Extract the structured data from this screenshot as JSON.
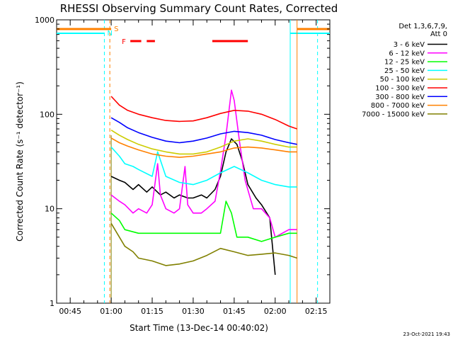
{
  "chart_data": {
    "type": "line",
    "title": "RHESSI Observing Summary Count Rates, Corrected",
    "xlabel": "Start Time (13-Dec-14 00:40:02)",
    "ylabel": "Corrected Count Rate (s⁻¹ detector⁻¹)",
    "x_axis_format": "HH:MM",
    "xlim": [
      "00:40:02",
      "02:20:00"
    ],
    "ylim": [
      1,
      1000
    ],
    "yscale": "log",
    "x_tick_labels": [
      "00:45",
      "01:00",
      "01:15",
      "01:30",
      "01:45",
      "02:00",
      "02:15"
    ],
    "y_tick_labels": [
      "1",
      "10",
      "100",
      "1000"
    ],
    "legend": {
      "placement": "right, outside",
      "header": [
        "Det 1,3,6,7,9,",
        "Att 0"
      ]
    },
    "annotations": {
      "footer_date": "23-Oct-2021 19:43",
      "saa_label": "S",
      "night_label": "N",
      "flare_label": "F",
      "saa_color": "#ff8000",
      "night_color": "#00ffff",
      "flare_color": "#ff0000",
      "saa_bar": [
        "00:40:02",
        "01:00"
      ],
      "saa_boundaries": [
        "00:59:30",
        "02:08:00"
      ],
      "night_bar": [
        "00:40:02",
        "00:57:30"
      ],
      "night_boundaries": [
        "00:57:30",
        "02:05:30",
        "02:15:30"
      ],
      "flare_segments": [
        [
          "01:07",
          "01:11"
        ],
        [
          "01:13",
          "01:16"
        ],
        [
          "01:37",
          "01:50"
        ]
      ],
      "data_gap_start": "01:00"
    },
    "series": [
      {
        "name": "3 - 6 keV",
        "color": "#000000",
        "x": [
          "01:00",
          "01:03",
          "01:05",
          "01:08",
          "01:10",
          "01:13",
          "01:15",
          "01:18",
          "01:20",
          "01:23",
          "01:25",
          "01:28",
          "01:30",
          "01:33",
          "01:35",
          "01:38",
          "01:40",
          "01:42",
          "01:44",
          "01:46",
          "01:48",
          "01:50",
          "01:53",
          "01:55",
          "01:58",
          "02:00"
        ],
        "y": [
          22,
          20,
          19,
          16,
          18,
          15,
          17,
          14,
          15,
          13,
          14,
          13,
          13,
          14,
          13,
          16,
          22,
          40,
          55,
          48,
          32,
          18,
          13,
          11,
          8,
          2
        ]
      },
      {
        "name": "6 - 12 keV",
        "color": "#ff00ff",
        "x": [
          "01:00",
          "01:03",
          "01:05",
          "01:08",
          "01:10",
          "01:13",
          "01:15",
          "01:17",
          "01:18",
          "01:20",
          "01:23",
          "01:25",
          "01:27",
          "01:28",
          "01:30",
          "01:33",
          "01:35",
          "01:38",
          "01:40",
          "01:42",
          "01:44",
          "01:45",
          "01:47",
          "01:49",
          "01:52",
          "01:55",
          "01:58",
          "02:00",
          "02:05",
          "02:08"
        ],
        "y": [
          14,
          12,
          11,
          9,
          10,
          9,
          11,
          30,
          14,
          10,
          9,
          10,
          28,
          11,
          9,
          9,
          10,
          12,
          25,
          60,
          180,
          140,
          50,
          20,
          10,
          10,
          8,
          5,
          6,
          6
        ]
      },
      {
        "name": "12 - 25 keV",
        "color": "#00ff00",
        "x": [
          "01:00",
          "01:03",
          "01:05",
          "01:10",
          "01:15",
          "01:20",
          "01:25",
          "01:30",
          "01:35",
          "01:40",
          "01:42",
          "01:44",
          "01:46",
          "01:50",
          "01:55",
          "02:00",
          "02:05",
          "02:08"
        ],
        "y": [
          9,
          7.5,
          6,
          5.5,
          5.5,
          5.5,
          5.5,
          5.5,
          5.5,
          5.5,
          12,
          9,
          5,
          5,
          4.5,
          5,
          5.5,
          5.5
        ]
      },
      {
        "name": "25 - 50 keV",
        "color": "#00ffff",
        "x": [
          "01:00",
          "01:03",
          "01:05",
          "01:08",
          "01:10",
          "01:15",
          "01:17",
          "01:20",
          "01:25",
          "01:30",
          "01:35",
          "01:40",
          "01:45",
          "01:50",
          "01:55",
          "02:00",
          "02:05",
          "02:08"
        ],
        "y": [
          45,
          36,
          30,
          28,
          26,
          22,
          40,
          22,
          19,
          18,
          20,
          24,
          28,
          24,
          20,
          18,
          17,
          17
        ]
      },
      {
        "name": "50 - 100 keV",
        "color": "#cccc00",
        "x": [
          "01:00",
          "01:03",
          "01:06",
          "01:10",
          "01:15",
          "01:20",
          "01:25",
          "01:30",
          "01:35",
          "01:40",
          "01:45",
          "01:50",
          "01:55",
          "02:00",
          "02:05",
          "02:08"
        ],
        "y": [
          68,
          60,
          54,
          48,
          43,
          40,
          38,
          38,
          40,
          45,
          52,
          55,
          52,
          48,
          45,
          45
        ]
      },
      {
        "name": "100 - 300 keV",
        "color": "#ff0000",
        "x": [
          "01:00",
          "01:03",
          "01:06",
          "01:10",
          "01:15",
          "01:20",
          "01:25",
          "01:30",
          "01:35",
          "01:40",
          "01:45",
          "01:50",
          "01:55",
          "02:00",
          "02:05",
          "02:08"
        ],
        "y": [
          155,
          125,
          110,
          100,
          92,
          86,
          84,
          85,
          92,
          102,
          110,
          108,
          100,
          88,
          75,
          70
        ]
      },
      {
        "name": "300 - 800 keV",
        "color": "#0000ff",
        "x": [
          "01:00",
          "01:03",
          "01:06",
          "01:10",
          "01:15",
          "01:20",
          "01:25",
          "01:30",
          "01:35",
          "01:40",
          "01:45",
          "01:50",
          "01:55",
          "02:00",
          "02:05",
          "02:08"
        ],
        "y": [
          92,
          82,
          72,
          64,
          57,
          52,
          50,
          52,
          56,
          62,
          66,
          64,
          60,
          54,
          50,
          48
        ]
      },
      {
        "name": "800 - 7000 keV",
        "color": "#ff8000",
        "x": [
          "01:00",
          "01:03",
          "01:06",
          "01:10",
          "01:15",
          "01:20",
          "01:25",
          "01:30",
          "01:35",
          "01:40",
          "01:45",
          "01:50",
          "01:55",
          "02:00",
          "02:05",
          "02:08"
        ],
        "y": [
          56,
          50,
          46,
          42,
          38,
          36,
          35,
          36,
          38,
          40,
          44,
          45,
          44,
          42,
          40,
          40
        ]
      },
      {
        "name": "7000 - 15000 keV",
        "color": "#808000",
        "x": [
          "01:00",
          "01:03",
          "01:05",
          "01:08",
          "01:10",
          "01:15",
          "01:20",
          "01:25",
          "01:30",
          "01:35",
          "01:40",
          "01:45",
          "01:50",
          "01:55",
          "02:00",
          "02:05",
          "02:08"
        ],
        "y": [
          7,
          5,
          4,
          3.5,
          3,
          2.8,
          2.5,
          2.6,
          2.8,
          3.2,
          3.8,
          3.5,
          3.2,
          3.3,
          3.4,
          3.2,
          3
        ]
      }
    ]
  }
}
